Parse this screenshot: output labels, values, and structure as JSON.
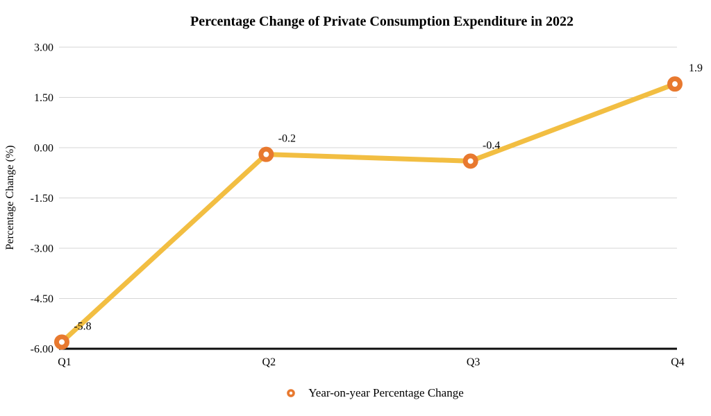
{
  "chart_data": {
    "type": "line",
    "title": "Percentage Change of Private Consumption Expenditure in 2022",
    "categories": [
      "Q1",
      "Q2",
      "Q3",
      "Q4"
    ],
    "series": [
      {
        "name": "Year-on-year Percentage Change",
        "values": [
          -5.8,
          -0.2,
          -0.4,
          1.9
        ],
        "point_labels": [
          "-5.8",
          "-0.2",
          "-0.4",
          "1.9"
        ]
      }
    ],
    "xlabel": "",
    "ylabel": "Percentage Change (%)",
    "ylim": [
      -6,
      3
    ],
    "ytick_step": 1.5,
    "ytick_labels": [
      "3.00",
      "1.50",
      "0.00",
      "-1.50",
      "-3.00",
      "-4.50",
      "-6.00"
    ],
    "ytick_values": [
      3,
      1.5,
      0,
      -1.5,
      -3,
      -4.5,
      -6
    ],
    "grid": true,
    "legend_position": "bottom",
    "marker_shape": "donut-circle",
    "colors": {
      "line": "#F2BE42",
      "marker_ring": "#E8792F",
      "marker_fill": "#FFFFFF",
      "gridline": "#D6D6D6",
      "axis_line": "#0D0D0D",
      "text": "#000000"
    }
  }
}
